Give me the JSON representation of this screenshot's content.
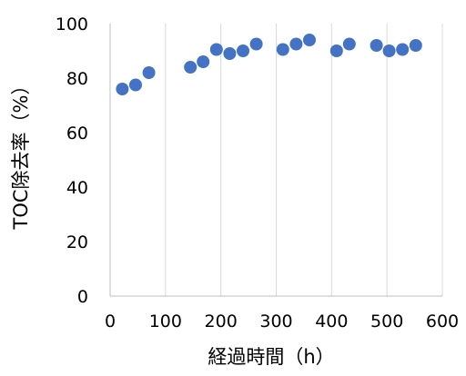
{
  "chart_data": {
    "type": "scatter",
    "title": "",
    "xlabel": "経過時間（h）",
    "ylabel": "TOC除去率（%）",
    "xlim": [
      0,
      600
    ],
    "ylim": [
      0,
      100
    ],
    "x_ticks": [
      0,
      100,
      200,
      300,
      400,
      500,
      600
    ],
    "y_ticks": [
      0,
      20,
      40,
      60,
      80,
      100
    ],
    "x_tick_labels": [
      "0",
      "100",
      "200",
      "300",
      "400",
      "500",
      "600"
    ],
    "y_tick_labels": [
      "0",
      "20",
      "40",
      "60",
      "80",
      "100"
    ],
    "grid": "vertical",
    "legend": "none",
    "series": [
      {
        "color": "#4472C4",
        "points": [
          {
            "x": 22,
            "y": 76
          },
          {
            "x": 46,
            "y": 77.5
          },
          {
            "x": 70,
            "y": 82
          },
          {
            "x": 145,
            "y": 84
          },
          {
            "x": 168,
            "y": 86
          },
          {
            "x": 192,
            "y": 90.5
          },
          {
            "x": 216,
            "y": 89
          },
          {
            "x": 240,
            "y": 90
          },
          {
            "x": 264,
            "y": 92.5
          },
          {
            "x": 312,
            "y": 90.5
          },
          {
            "x": 336,
            "y": 92.5
          },
          {
            "x": 360,
            "y": 94
          },
          {
            "x": 409,
            "y": 90
          },
          {
            "x": 432,
            "y": 92.5
          },
          {
            "x": 481,
            "y": 92
          },
          {
            "x": 504,
            "y": 90
          },
          {
            "x": 528,
            "y": 90.5
          },
          {
            "x": 552,
            "y": 92
          }
        ]
      }
    ]
  },
  "colors": {
    "marker": "#4472C4",
    "grid": "#D9D9D9",
    "axis": "#BFBFBF"
  }
}
